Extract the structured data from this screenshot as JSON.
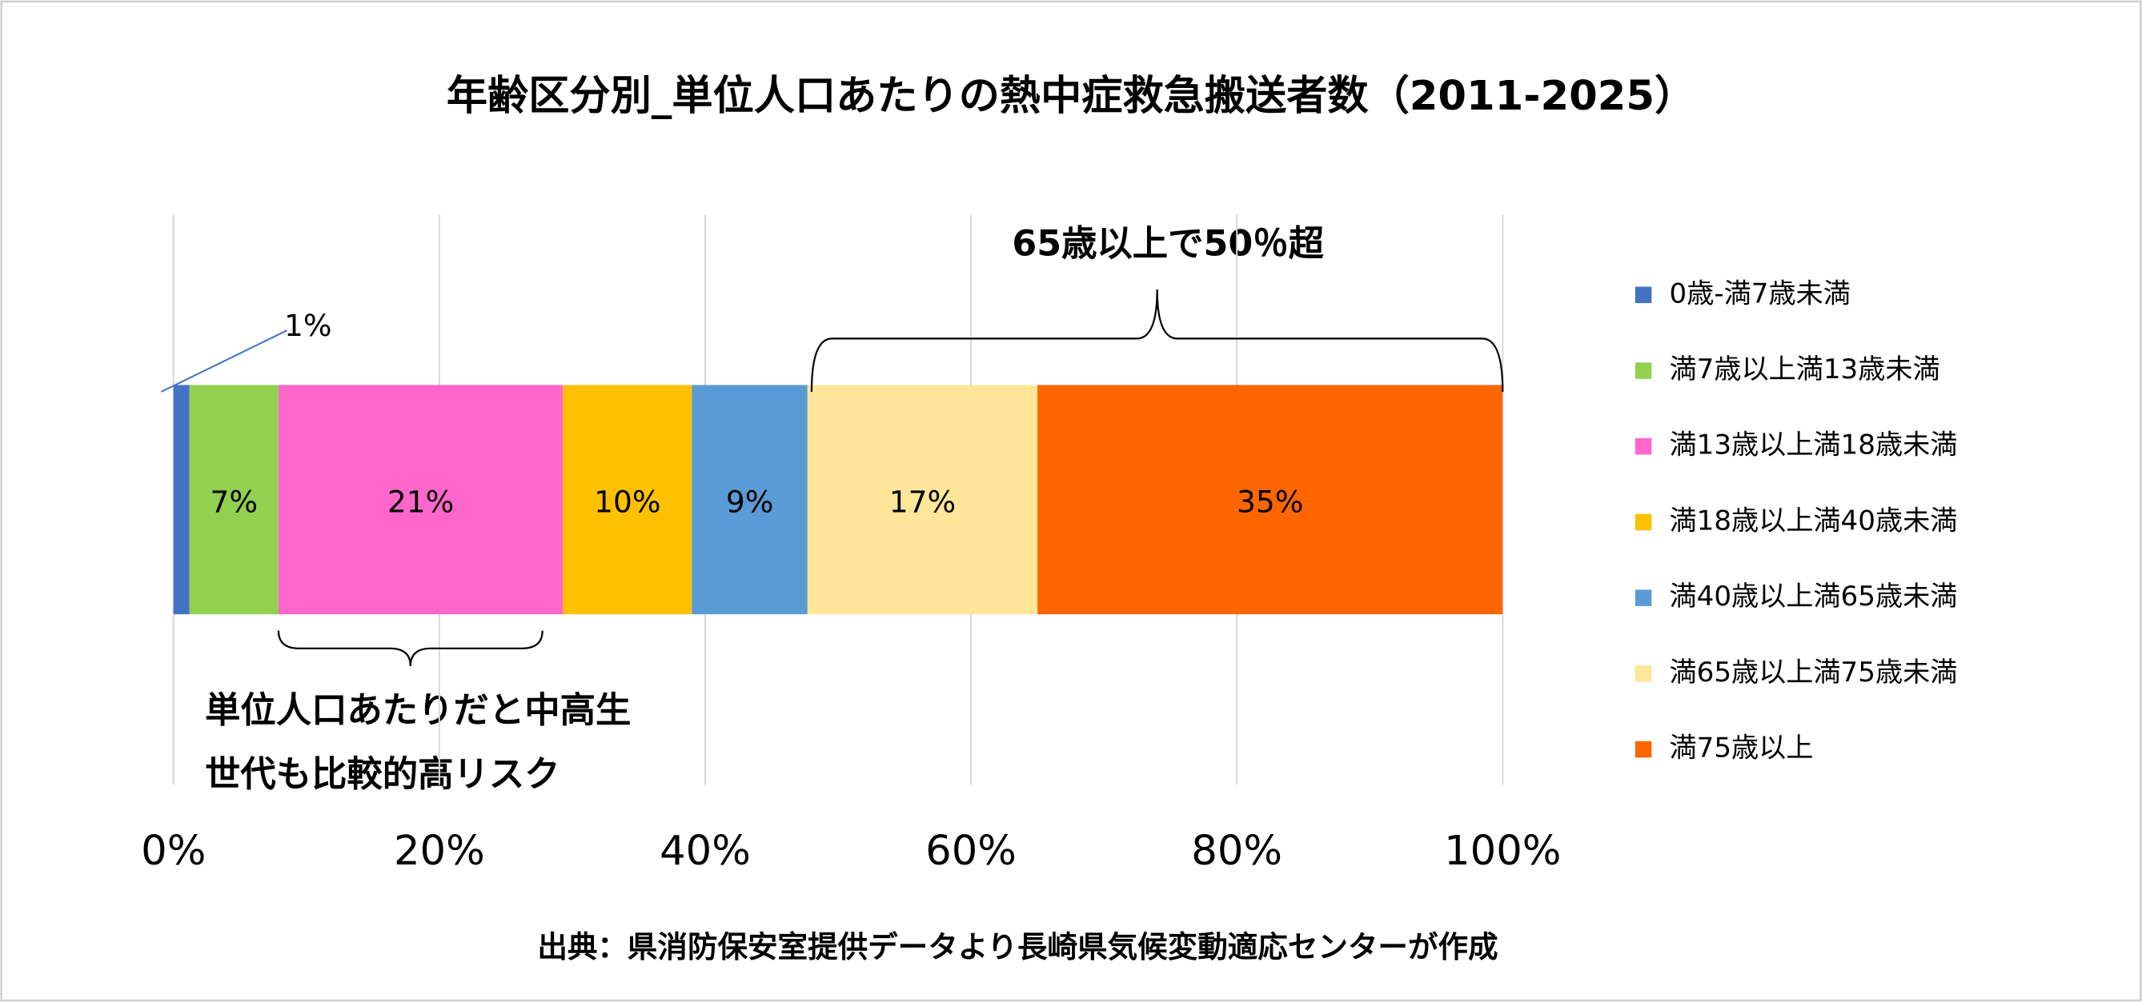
{
  "chart_data": {
    "type": "stacked-barh",
    "title": "年齢区分別_単位人口あたりの熱中症救急搬送者数（2011-2025）",
    "categories": [
      null
    ],
    "series": [
      {
        "name": "0歳-満7歳未満",
        "color": "#4472c4",
        "values": [
          1.2
        ],
        "value_labels": [
          "1%"
        ]
      },
      {
        "name": "満7歳以上満13歳未満",
        "color": "#92d050",
        "values": [
          6.7
        ],
        "value_labels": [
          "7%"
        ]
      },
      {
        "name": "満13歳以上満18歳未満",
        "color": "#ff66cc",
        "values": [
          21.4
        ],
        "value_labels": [
          "21%"
        ]
      },
      {
        "name": "満18歳以上満40歳未満",
        "color": "#ffc000",
        "values": [
          9.7
        ],
        "value_labels": [
          "10%"
        ]
      },
      {
        "name": "満40歳以上満65歳未満",
        "color": "#5b9bd5",
        "values": [
          8.7
        ],
        "value_labels": [
          "9%"
        ]
      },
      {
        "name": "満65歳以上満75歳未満",
        "color": "#ffe699",
        "values": [
          17.3
        ],
        "value_labels": [
          "17%"
        ]
      },
      {
        "name": "満75歳以上",
        "color": "#ff6600",
        "values": [
          35.0
        ],
        "value_labels": [
          "35%"
        ]
      }
    ],
    "xlim": [
      0,
      100
    ],
    "xticks": [
      {
        "value": 0,
        "label": "0%"
      },
      {
        "value": 20,
        "label": "20%"
      },
      {
        "value": 40,
        "label": "40%"
      },
      {
        "value": 60,
        "label": "60%"
      },
      {
        "value": 80,
        "label": "80%"
      },
      {
        "value": 100,
        "label": "100%"
      }
    ],
    "grid": true,
    "legend": "right",
    "annotations": [
      "65歳以上で50％超",
      "単位人口あたりだと中高生",
      "世代も比較的高リスク"
    ],
    "source": "出典：県消防保安室提供データより長崎県気候変動適応センターが作成"
  }
}
